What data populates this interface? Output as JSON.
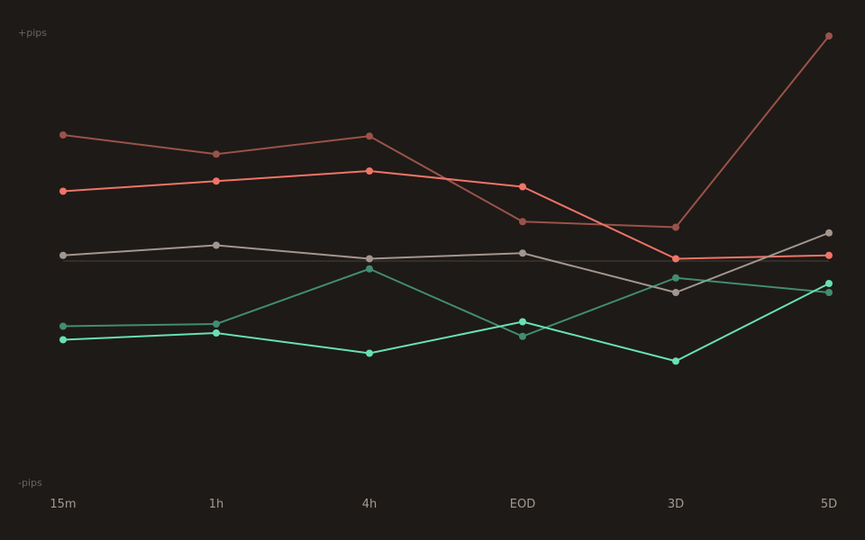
{
  "chart_data": {
    "type": "line",
    "title": "",
    "xlabel": "",
    "ylabel": "",
    "y_top_label": "+pips",
    "y_bottom_label": "-pips",
    "categories": [
      "15m",
      "1h",
      "4h",
      "EOD",
      "3D",
      "5D"
    ],
    "ylim": [
      -100,
      100
    ],
    "zero_line": true,
    "grid": false,
    "legend": "none",
    "series": [
      {
        "color": "#c2665a",
        "alpha": 0.75,
        "values": [
          56,
          47.5,
          55.5,
          17.5,
          15,
          100
        ]
      },
      {
        "color": "#f07468",
        "alpha": 1.0,
        "values": [
          31,
          35.5,
          40,
          33,
          1,
          2.5
        ]
      },
      {
        "color": "#a2968f",
        "alpha": 1.0,
        "values": [
          2.5,
          7,
          1,
          3.5,
          -14,
          12.5
        ]
      },
      {
        "color": "#4fb393",
        "alpha": 0.75,
        "values": [
          -29,
          -28,
          -3.5,
          -33.5,
          -7.5,
          -14
        ]
      },
      {
        "color": "#68e0b6",
        "alpha": 1.0,
        "values": [
          -35,
          -32,
          -41,
          -27,
          -44.5,
          -10
        ]
      }
    ],
    "colors": {
      "background": "#1e1a17",
      "zero_line": "#3a3430",
      "axis_text": "#a39b93",
      "y_label_text": "#6b6560"
    }
  }
}
